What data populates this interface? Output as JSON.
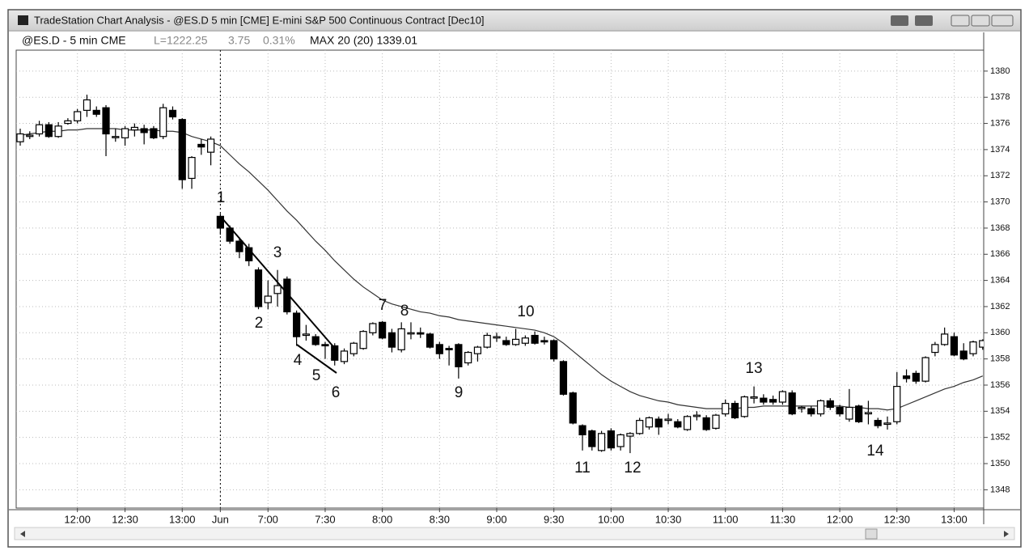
{
  "window": {
    "title": "TradeStation Chart Analysis - @ES.D 5 min [CME] E-mini S&P 500 Continuous Contract [Dec10]",
    "symbol": "@ES.D - 5 min CME",
    "last": "L=1222.25",
    "change": "3.75",
    "change_pct": "0.31%",
    "indicator": "MAX 20 (20) 1339.01"
  },
  "chart_data": {
    "type": "candlestick",
    "categories": [
      null,
      null,
      null,
      null,
      null,
      null,
      "12:00",
      null,
      null,
      null,
      null,
      "12:30",
      null,
      null,
      null,
      null,
      null,
      "13:00",
      null,
      null,
      null,
      "Jun",
      null,
      null,
      null,
      null,
      "7:00",
      null,
      null,
      null,
      null,
      null,
      "7:30",
      null,
      null,
      null,
      null,
      null,
      "8:00",
      null,
      null,
      null,
      null,
      null,
      "8:30",
      null,
      null,
      null,
      null,
      null,
      "9:00",
      null,
      null,
      null,
      null,
      null,
      "9:30",
      null,
      null,
      null,
      null,
      null,
      "10:00",
      null,
      null,
      null,
      null,
      null,
      "10:30",
      null,
      null,
      null,
      null,
      null,
      "11:00",
      null,
      null,
      null,
      null,
      null,
      "11:30",
      null,
      null,
      null,
      null,
      null,
      "12:00",
      null,
      null,
      null,
      null,
      null,
      "12:30",
      null,
      null,
      null,
      null,
      null,
      "13:00",
      null,
      null,
      null
    ],
    "open": [
      1374.6,
      1375.0,
      1375.2,
      1375.9,
      1375.0,
      1376.0,
      1376.2,
      1377.0,
      1377.0,
      1377.2,
      1375.0,
      1374.9,
      1375.5,
      1375.6,
      1375.6,
      1375.0,
      1377.0,
      1376.3,
      1371.8,
      1374.4,
      1373.8,
      1368.9,
      1368.0,
      1367.0,
      1366.5,
      1364.8,
      1362.3,
      1363.0,
      1364.1,
      1361.5,
      1359.8,
      1359.7,
      1359.1,
      1359.0,
      1357.8,
      1358.4,
      1358.8,
      1360.0,
      1360.8,
      1360.0,
      1358.7,
      1360.0,
      1360.0,
      1359.9,
      1359.1,
      1358.8,
      1359.1,
      1357.7,
      1358.4,
      1358.9,
      1359.6,
      1359.4,
      1359.1,
      1359.2,
      1359.8,
      1359.4,
      1359.4,
      1357.8,
      1355.4,
      1352.9,
      1352.5,
      1351.0,
      1352.5,
      1351.3,
      1352.1,
      1352.3,
      1352.8,
      1353.4,
      1353.3,
      1353.2,
      1352.6,
      1353.6,
      1353.5,
      1352.7,
      1353.8,
      1354.6,
      1353.6,
      1355.0,
      1355.0,
      1354.9,
      1354.7,
      1355.4,
      1354.2,
      1354.2,
      1353.8,
      1354.8,
      1354.3,
      1353.4,
      1354.4,
      1353.8,
      1353.3,
      1353.0,
      1353.2,
      1356.7,
      1356.9,
      1356.3,
      1358.5,
      1359.1,
      1359.7,
      1358.6,
      1358.4,
      1358.9
    ],
    "high": [
      1375.6,
      1375.4,
      1376.2,
      1376.1,
      1376.1,
      1376.4,
      1377.1,
      1378.2,
      1377.3,
      1377.4,
      1375.6,
      1375.8,
      1376.0,
      1375.9,
      1375.8,
      1377.5,
      1377.3,
      1376.4,
      1373.5,
      1374.8,
      1375.0,
      1369.1,
      1368.2,
      1367.3,
      1366.8,
      1365.0,
      1364.0,
      1364.8,
      1364.3,
      1361.7,
      1360.6,
      1359.9,
      1359.3,
      1359.2,
      1358.8,
      1359.3,
      1360.2,
      1360.8,
      1360.9,
      1360.3,
      1360.8,
      1360.8,
      1360.4,
      1360.0,
      1359.3,
      1359.0,
      1359.2,
      1358.6,
      1359.0,
      1360.0,
      1360.0,
      1359.7,
      1360.3,
      1359.8,
      1360.1,
      1359.7,
      1359.5,
      1357.9,
      1355.5,
      1353.0,
      1352.6,
      1352.5,
      1352.7,
      1352.3,
      1352.4,
      1353.5,
      1353.6,
      1353.6,
      1353.8,
      1353.4,
      1353.7,
      1354.0,
      1353.7,
      1353.8,
      1354.9,
      1354.8,
      1355.2,
      1355.9,
      1355.3,
      1355.2,
      1355.6,
      1355.6,
      1354.4,
      1354.4,
      1354.9,
      1355.0,
      1354.5,
      1355.7,
      1354.5,
      1354.8,
      1353.5,
      1353.6,
      1357.0,
      1357.2,
      1357.1,
      1358.2,
      1359.3,
      1360.4,
      1360.0,
      1359.2,
      1359.4,
      1359.5
    ],
    "low": [
      1374.3,
      1374.8,
      1375.0,
      1374.9,
      1374.9,
      1375.9,
      1376.0,
      1376.5,
      1376.5,
      1373.5,
      1374.6,
      1374.3,
      1375.0,
      1374.4,
      1374.8,
      1374.8,
      1376.3,
      1371.0,
      1371.0,
      1373.6,
      1372.8,
      1367.5,
      1366.8,
      1365.7,
      1365.1,
      1361.8,
      1361.8,
      1362.0,
      1361.4,
      1359.0,
      1359.4,
      1359.0,
      1358.0,
      1357.5,
      1357.6,
      1358.2,
      1358.7,
      1359.8,
      1359.5,
      1358.5,
      1358.5,
      1359.5,
      1359.6,
      1358.8,
      1358.0,
      1357.5,
      1356.5,
      1357.5,
      1357.8,
      1358.8,
      1359.3,
      1359.0,
      1359.0,
      1359.0,
      1359.1,
      1359.1,
      1357.8,
      1355.2,
      1353.0,
      1351.0,
      1351.0,
      1350.9,
      1351.0,
      1351.0,
      1350.8,
      1352.2,
      1352.6,
      1352.2,
      1353.0,
      1352.7,
      1352.5,
      1353.3,
      1352.5,
      1352.6,
      1353.6,
      1353.4,
      1353.5,
      1354.6,
      1354.5,
      1354.5,
      1354.5,
      1353.7,
      1353.9,
      1353.6,
      1353.6,
      1354.1,
      1353.6,
      1353.2,
      1353.1,
      1353.0,
      1352.7,
      1352.6,
      1353.0,
      1356.2,
      1356.1,
      1356.2,
      1358.2,
      1359.0,
      1358.2,
      1357.9,
      1358.2,
      1358.7
    ],
    "close": [
      1375.2,
      1375.1,
      1375.9,
      1375.0,
      1375.8,
      1376.2,
      1376.9,
      1377.8,
      1376.7,
      1375.2,
      1375.0,
      1375.6,
      1375.7,
      1375.3,
      1374.9,
      1377.2,
      1376.5,
      1371.7,
      1373.4,
      1374.2,
      1374.8,
      1368.0,
      1367.0,
      1366.2,
      1365.5,
      1362.0,
      1362.8,
      1363.6,
      1361.6,
      1359.7,
      1359.9,
      1359.1,
      1359.0,
      1357.9,
      1358.6,
      1359.2,
      1360.1,
      1360.7,
      1359.6,
      1358.9,
      1360.3,
      1360.0,
      1359.9,
      1358.9,
      1358.4,
      1358.7,
      1357.4,
      1358.5,
      1358.9,
      1359.8,
      1359.7,
      1359.1,
      1359.5,
      1359.6,
      1359.2,
      1359.3,
      1358.0,
      1355.3,
      1353.1,
      1352.2,
      1351.3,
      1352.3,
      1351.2,
      1352.2,
      1352.3,
      1353.3,
      1353.5,
      1352.8,
      1353.4,
      1352.8,
      1353.6,
      1353.7,
      1352.6,
      1353.7,
      1354.6,
      1353.5,
      1355.1,
      1355.1,
      1354.7,
      1354.7,
      1355.5,
      1353.8,
      1354.3,
      1353.8,
      1354.8,
      1354.3,
      1353.8,
      1354.3,
      1353.2,
      1353.9,
      1352.9,
      1353.1,
      1355.9,
      1356.5,
      1356.3,
      1358.1,
      1359.1,
      1359.9,
      1358.3,
      1358.0,
      1359.3,
      1359.4
    ],
    "up_color": "#ffffff",
    "down_color": "#000000",
    "edge_color": "#000000",
    "moving_average": {
      "color": "#333333",
      "values": [
        1375.1,
        1375.2,
        1375.3,
        1375.4,
        1375.4,
        1375.5,
        1375.5,
        1375.6,
        1375.6,
        1375.6,
        1375.6,
        1375.5,
        1375.5,
        1375.5,
        1375.5,
        1375.4,
        1375.4,
        1375.3,
        1375.0,
        1374.8,
        1374.6,
        1374.3,
        1373.6,
        1372.9,
        1372.3,
        1371.6,
        1370.9,
        1370.1,
        1369.3,
        1368.6,
        1367.8,
        1367.0,
        1366.3,
        1365.5,
        1364.8,
        1364.1,
        1363.5,
        1363.0,
        1362.5,
        1362.2,
        1362.0,
        1361.8,
        1361.6,
        1361.5,
        1361.3,
        1361.2,
        1361.0,
        1360.9,
        1360.8,
        1360.7,
        1360.6,
        1360.5,
        1360.4,
        1360.3,
        1360.2,
        1360.0,
        1359.7,
        1359.2,
        1358.6,
        1358.0,
        1357.4,
        1356.8,
        1356.3,
        1355.9,
        1355.5,
        1355.2,
        1355.0,
        1354.8,
        1354.7,
        1354.5,
        1354.4,
        1354.3,
        1354.2,
        1354.2,
        1354.2,
        1354.2,
        1354.3,
        1354.3,
        1354.4,
        1354.4,
        1354.4,
        1354.4,
        1354.4,
        1354.4,
        1354.4,
        1354.4,
        1354.4,
        1354.3,
        1354.3,
        1354.2,
        1354.2,
        1354.1,
        1354.2,
        1354.5,
        1354.8,
        1355.1,
        1355.4,
        1355.7,
        1355.9,
        1356.2,
        1356.4,
        1356.7
      ]
    },
    "ylim": [
      1346.6,
      1381.6
    ],
    "yticks": [
      1348,
      1350,
      1352,
      1354,
      1356,
      1358,
      1360,
      1362,
      1364,
      1366,
      1368,
      1370,
      1372,
      1374,
      1376,
      1378,
      1380
    ],
    "grid": true,
    "annotations": [
      "1",
      "2",
      "3",
      "4",
      "5",
      "6",
      "7",
      "8",
      "9",
      "10",
      "11",
      "12",
      "13",
      "14"
    ]
  }
}
